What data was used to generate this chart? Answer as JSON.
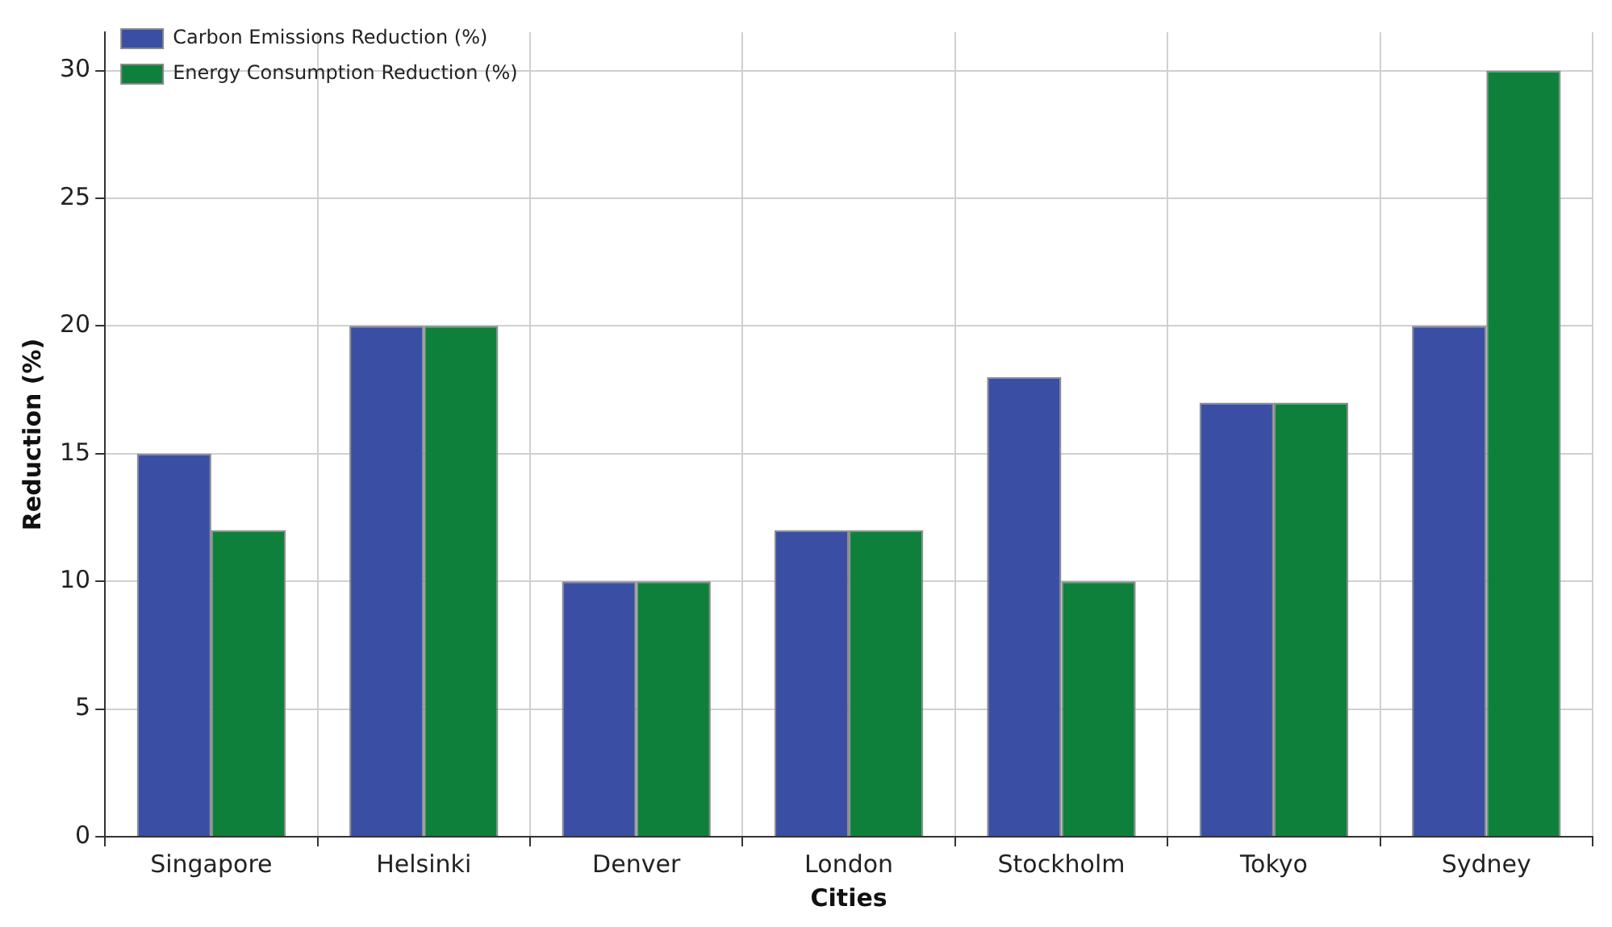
{
  "chart_data": {
    "type": "bar",
    "xlabel": "Cities",
    "ylabel": "Reduction (%)",
    "categories": [
      "Singapore",
      "Helsinki",
      "Denver",
      "London",
      "Stockholm",
      "Tokyo",
      "Sydney"
    ],
    "series": [
      {
        "name": "Carbon Emissions Reduction (%)",
        "color": "#3a4fa3",
        "values": [
          15,
          20,
          10,
          12,
          18,
          17,
          20
        ]
      },
      {
        "name": "Energy Consumption Reduction (%)",
        "color": "#0f803c",
        "values": [
          12,
          20,
          10,
          12,
          10,
          17,
          30
        ]
      }
    ],
    "ylim": [
      0,
      31.5
    ],
    "yticks": [
      0,
      5,
      10,
      15,
      20,
      25,
      30
    ],
    "grid": true,
    "legend": "top left"
  }
}
